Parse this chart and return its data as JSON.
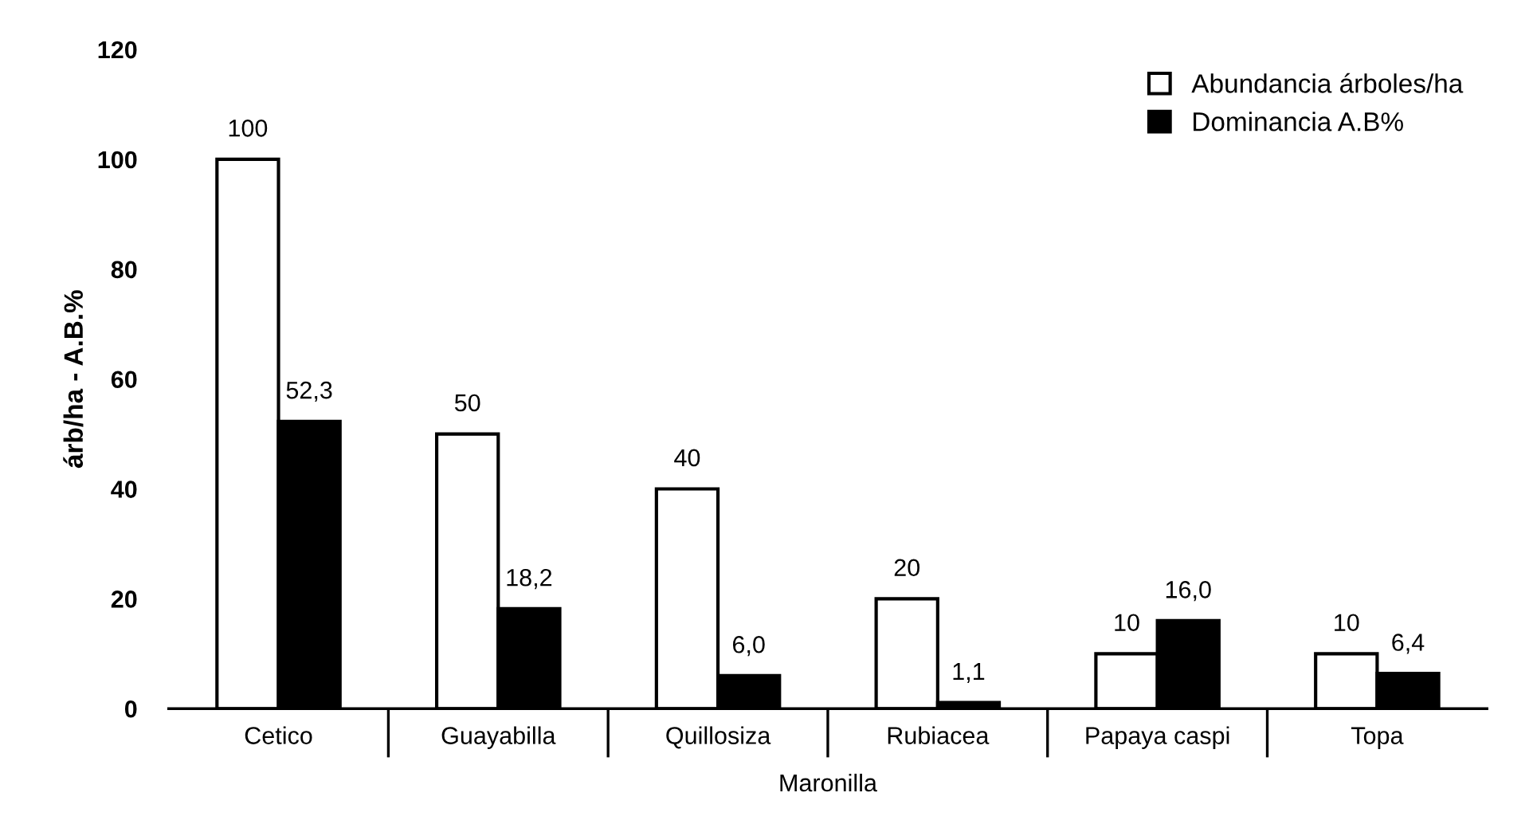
{
  "chart_data": {
    "type": "bar",
    "categories": [
      "Cetico",
      "Guayabilla",
      "Quillosiza",
      "Rubiacea",
      "Papaya caspi",
      "Topa"
    ],
    "xlabel": "Maronilla",
    "ylabel": "árb/ha - A.B.%",
    "series": [
      {
        "name": "Abundancia árboles/ha",
        "color": "#ffffff",
        "values": [
          100,
          50,
          40,
          20,
          10,
          10
        ],
        "value_labels": [
          "100",
          "50",
          "40",
          "20",
          "10",
          "10"
        ]
      },
      {
        "name": "Dominancia A.B%",
        "color": "#000000",
        "values": [
          52.3,
          18.2,
          6.0,
          1.1,
          16.0,
          6.4
        ],
        "value_labels": [
          "52,3",
          "18,2",
          "6,0",
          "1,1",
          "16,0",
          "6,4"
        ]
      }
    ],
    "ylim": [
      0,
      120
    ],
    "yticks": [
      0,
      20,
      40,
      60,
      80,
      100,
      120
    ],
    "grid": false,
    "legend": "top right"
  }
}
